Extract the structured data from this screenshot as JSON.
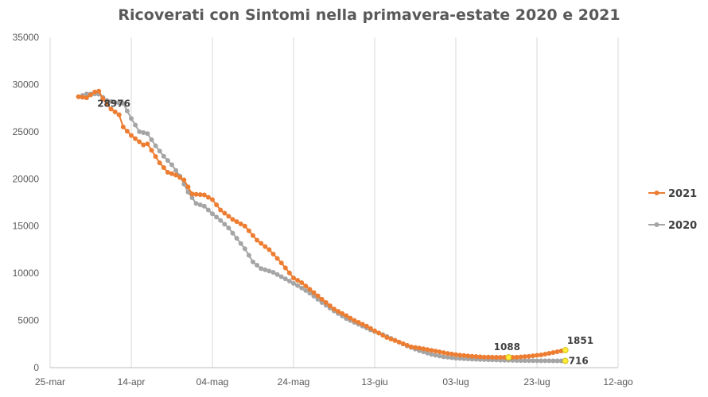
{
  "colors": {
    "series_2021": "#ED7D31",
    "series_2020": "#A5A5A5",
    "highlight": "#FFEB3B",
    "grid": "#D9D9D9"
  },
  "chart_data": {
    "type": "line",
    "title": "Ricoverati con Sintomi nella primavera-estate 2020 e 2021",
    "xlabel": "",
    "ylabel": "",
    "x_axis": {
      "tick_labels": [
        "25-mar",
        "14-apr",
        "04-mag",
        "24-mag",
        "13-giu",
        "03-lug",
        "23-lug",
        "12-ago"
      ],
      "tick_days": [
        0,
        20,
        40,
        60,
        80,
        100,
        120,
        140
      ],
      "range_days": [
        0,
        140
      ]
    },
    "y_axis": {
      "tick_labels": [
        "0",
        "5000",
        "10000",
        "15000",
        "20000",
        "25000",
        "30000",
        "35000"
      ],
      "ylim": [
        0,
        35000
      ]
    },
    "grid": "vertical",
    "legend_position": "right",
    "series": [
      {
        "name": "2021",
        "x_start_day": 7,
        "anchors": [
          [
            7,
            28700
          ],
          [
            9,
            28600
          ],
          [
            11,
            29200
          ],
          [
            12,
            29300
          ],
          [
            13,
            28500
          ],
          [
            15,
            27400
          ],
          [
            17,
            26800
          ],
          [
            18,
            25500
          ],
          [
            20,
            24600
          ],
          [
            23,
            23600
          ],
          [
            24,
            23700
          ],
          [
            27,
            21700
          ],
          [
            29,
            20700
          ],
          [
            31,
            20400
          ],
          [
            33,
            19900
          ],
          [
            35,
            18400
          ],
          [
            38,
            18300
          ],
          [
            40,
            17800
          ],
          [
            42,
            16700
          ],
          [
            45,
            15700
          ],
          [
            48,
            15000
          ],
          [
            51,
            13500
          ],
          [
            54,
            12500
          ],
          [
            57,
            11100
          ],
          [
            60,
            9500
          ],
          [
            62,
            9000
          ],
          [
            64,
            8300
          ],
          [
            66,
            7600
          ],
          [
            68,
            6900
          ],
          [
            70,
            6200
          ],
          [
            73,
            5500
          ],
          [
            75,
            5000
          ],
          [
            78,
            4400
          ],
          [
            80,
            3900
          ],
          [
            83,
            3200
          ],
          [
            86,
            2700
          ],
          [
            89,
            2200
          ],
          [
            92,
            2000
          ],
          [
            95,
            1750
          ],
          [
            98,
            1500
          ],
          [
            101,
            1320
          ],
          [
            104,
            1200
          ],
          [
            107,
            1120
          ],
          [
            110,
            1090
          ],
          [
            113,
            1088
          ],
          [
            115,
            1100
          ],
          [
            118,
            1200
          ],
          [
            121,
            1350
          ],
          [
            124,
            1600
          ],
          [
            127,
            1851
          ]
        ],
        "values": []
      },
      {
        "name": "2020",
        "x_start_day": 7,
        "anchors": [
          [
            7,
            28700
          ],
          [
            9,
            29000
          ],
          [
            11,
            29000
          ],
          [
            12,
            28976
          ],
          [
            14,
            28300
          ],
          [
            16,
            28100
          ],
          [
            18,
            28000
          ],
          [
            20,
            26400
          ],
          [
            22,
            25000
          ],
          [
            24,
            24800
          ],
          [
            26,
            23500
          ],
          [
            28,
            22400
          ],
          [
            30,
            21500
          ],
          [
            32,
            20300
          ],
          [
            34,
            18600
          ],
          [
            36,
            17400
          ],
          [
            38,
            17100
          ],
          [
            40,
            16300
          ],
          [
            42,
            15600
          ],
          [
            44,
            14800
          ],
          [
            46,
            13700
          ],
          [
            48,
            12600
          ],
          [
            50,
            11200
          ],
          [
            52,
            10500
          ],
          [
            55,
            10100
          ],
          [
            58,
            9400
          ],
          [
            61,
            8700
          ],
          [
            64,
            7900
          ],
          [
            67,
            6900
          ],
          [
            70,
            6000
          ],
          [
            73,
            5200
          ],
          [
            76,
            4600
          ],
          [
            79,
            4000
          ],
          [
            82,
            3500
          ],
          [
            85,
            2900
          ],
          [
            88,
            2300
          ],
          [
            91,
            1800
          ],
          [
            94,
            1400
          ],
          [
            97,
            1150
          ],
          [
            100,
            1000
          ],
          [
            104,
            900
          ],
          [
            108,
            830
          ],
          [
            112,
            780
          ],
          [
            116,
            750
          ],
          [
            120,
            730
          ],
          [
            124,
            720
          ],
          [
            127,
            716
          ]
        ],
        "values": []
      }
    ],
    "annotations": [
      {
        "text": "28976",
        "series": "2020",
        "x_day": 12,
        "y": 28976
      },
      {
        "text": "1088",
        "series": "2021",
        "x_day": 113,
        "y": 1088
      },
      {
        "text": "1851",
        "series": "2021",
        "x_day": 127,
        "y": 1851
      },
      {
        "text": "716",
        "series": "2020",
        "x_day": 127,
        "y": 716
      }
    ]
  }
}
